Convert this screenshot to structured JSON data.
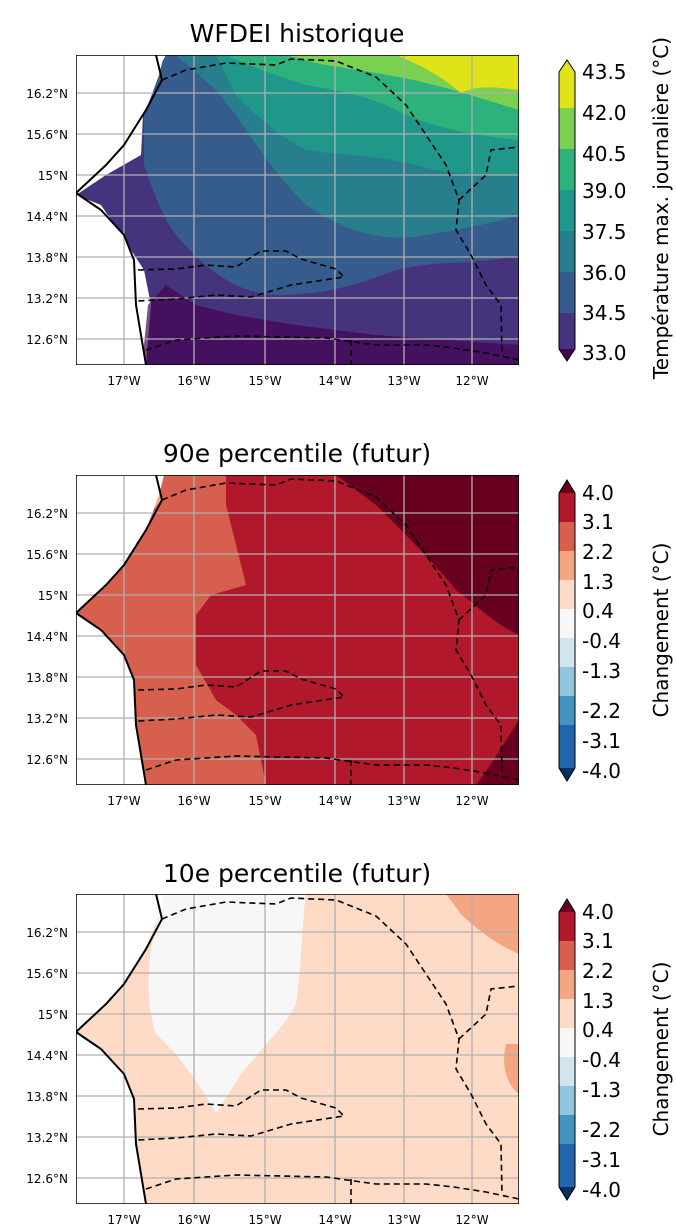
{
  "panels": [
    {
      "title": "WFDEI historique",
      "colorbar_label": "Température max. journalière (°C)",
      "colorbar_ticks": [
        "43.5",
        "42.0",
        "40.5",
        "39.0",
        "37.5",
        "36.0",
        "34.5",
        "33.0"
      ],
      "colors": [
        "#dfe318",
        "#7ad151",
        "#2db27d",
        "#1f988b",
        "#277f8e",
        "#365c8d",
        "#46337e",
        "#440154"
      ]
    },
    {
      "title": "90e percentile (futur)",
      "colorbar_label": "Changement (°C)",
      "colorbar_ticks": [
        "4.0",
        "3.1",
        "2.2",
        "1.3",
        "0.4",
        "-0.4",
        "-1.3",
        "-2.2",
        "-3.1",
        "-4.0"
      ],
      "colors": [
        "#67001f",
        "#b2182b",
        "#d6604d",
        "#f4a582",
        "#fddbc7",
        "#f7f7f7",
        "#d1e5f0",
        "#92c5de",
        "#4393c3",
        "#2166ac",
        "#053061"
      ]
    },
    {
      "title": "10e percentile (futur)",
      "colorbar_label": "Changement (°C)",
      "colorbar_ticks": [
        "4.0",
        "3.1",
        "2.2",
        "1.3",
        "0.4",
        "-0.4",
        "-1.3",
        "-2.2",
        "-3.1",
        "-4.0"
      ],
      "colors": [
        "#67001f",
        "#b2182b",
        "#d6604d",
        "#f4a582",
        "#fddbc7",
        "#f7f7f7",
        "#d1e5f0",
        "#92c5de",
        "#4393c3",
        "#2166ac",
        "#053061"
      ]
    }
  ],
  "lat_ticks": [
    "16.2°N",
    "15.6°N",
    "15°N",
    "14.4°N",
    "13.8°N",
    "13.2°N",
    "12.6°N"
  ],
  "lon_ticks": [
    "17°W",
    "16°W",
    "15°W",
    "14°W",
    "13°W",
    "12°W"
  ]
}
